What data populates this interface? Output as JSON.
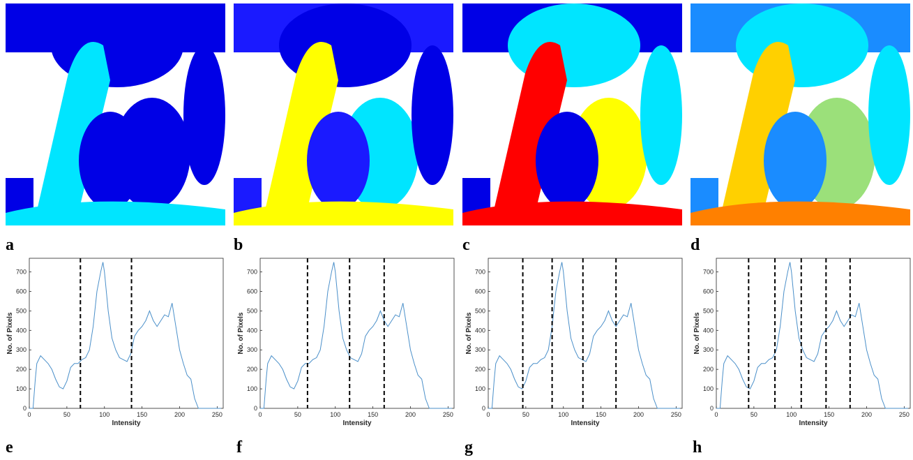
{
  "image_panels": [
    {
      "label": "a"
    },
    {
      "label": "b"
    },
    {
      "label": "c"
    },
    {
      "label": "d"
    }
  ],
  "chart_data": [
    {
      "type": "line",
      "panel_label": "e",
      "xlabel": "Intensity",
      "ylabel": "No. of Pixels",
      "color": "#4a8fc9",
      "threshold_color": "#000000",
      "x": [
        0,
        5,
        8,
        10,
        15,
        20,
        25,
        30,
        35,
        40,
        45,
        50,
        55,
        60,
        65,
        70,
        75,
        80,
        85,
        90,
        95,
        98,
        100,
        105,
        110,
        115,
        120,
        125,
        130,
        135,
        140,
        145,
        150,
        155,
        160,
        165,
        170,
        175,
        180,
        185,
        190,
        195,
        200,
        205,
        210,
        215,
        220,
        225,
        230,
        240,
        250,
        255
      ],
      "values": [
        0,
        0,
        150,
        230,
        270,
        250,
        230,
        200,
        150,
        110,
        100,
        140,
        210,
        230,
        230,
        250,
        260,
        300,
        420,
        600,
        700,
        750,
        700,
        500,
        360,
        300,
        260,
        250,
        240,
        280,
        370,
        400,
        420,
        450,
        500,
        450,
        420,
        450,
        480,
        470,
        540,
        420,
        300,
        230,
        170,
        150,
        50,
        0,
        0,
        0,
        0,
        0
      ],
      "thresholds": [
        68,
        136
      ],
      "xlim": [
        0,
        258
      ],
      "ylim": [
        0,
        770
      ],
      "xticks": [
        0,
        50,
        100,
        150,
        200,
        250
      ],
      "yticks": [
        0,
        100,
        200,
        300,
        400,
        500,
        600,
        700
      ]
    },
    {
      "type": "line",
      "panel_label": "f",
      "xlabel": "Intensity",
      "ylabel": "No. of Pixels",
      "color": "#4a8fc9",
      "threshold_color": "#000000",
      "x": [
        0,
        5,
        8,
        10,
        15,
        20,
        25,
        30,
        35,
        40,
        45,
        50,
        55,
        60,
        65,
        70,
        75,
        80,
        85,
        90,
        95,
        98,
        100,
        105,
        110,
        115,
        120,
        125,
        130,
        135,
        140,
        145,
        150,
        155,
        160,
        165,
        170,
        175,
        180,
        185,
        190,
        195,
        200,
        205,
        210,
        215,
        220,
        225,
        230,
        240,
        250,
        255
      ],
      "values": [
        0,
        0,
        150,
        230,
        270,
        250,
        230,
        200,
        150,
        110,
        100,
        140,
        210,
        230,
        230,
        250,
        260,
        300,
        420,
        600,
        700,
        750,
        700,
        500,
        360,
        300,
        260,
        250,
        240,
        280,
        370,
        400,
        420,
        450,
        500,
        450,
        420,
        450,
        480,
        470,
        540,
        420,
        300,
        230,
        170,
        150,
        50,
        0,
        0,
        0,
        0,
        0
      ],
      "thresholds": [
        63,
        119,
        165
      ],
      "xlim": [
        0,
        258
      ],
      "ylim": [
        0,
        770
      ],
      "xticks": [
        0,
        50,
        100,
        150,
        200,
        250
      ],
      "yticks": [
        0,
        100,
        200,
        300,
        400,
        500,
        600,
        700
      ]
    },
    {
      "type": "line",
      "panel_label": "g",
      "xlabel": "Intensity",
      "ylabel": "No. of Pixels",
      "color": "#4a8fc9",
      "threshold_color": "#000000",
      "x": [
        0,
        5,
        8,
        10,
        15,
        20,
        25,
        30,
        35,
        40,
        45,
        50,
        55,
        60,
        65,
        70,
        75,
        80,
        85,
        90,
        95,
        98,
        100,
        105,
        110,
        115,
        120,
        125,
        130,
        135,
        140,
        145,
        150,
        155,
        160,
        165,
        170,
        175,
        180,
        185,
        190,
        195,
        200,
        205,
        210,
        215,
        220,
        225,
        230,
        240,
        250,
        255
      ],
      "values": [
        0,
        0,
        150,
        230,
        270,
        250,
        230,
        200,
        150,
        110,
        100,
        140,
        210,
        230,
        230,
        250,
        260,
        300,
        420,
        600,
        700,
        750,
        700,
        500,
        360,
        300,
        260,
        250,
        240,
        280,
        370,
        400,
        420,
        450,
        500,
        450,
        420,
        450,
        480,
        470,
        540,
        420,
        300,
        230,
        170,
        150,
        50,
        0,
        0,
        0,
        0,
        0
      ],
      "thresholds": [
        46,
        85,
        126,
        170
      ],
      "xlim": [
        0,
        258
      ],
      "ylim": [
        0,
        770
      ],
      "xticks": [
        0,
        50,
        100,
        150,
        200,
        250
      ],
      "yticks": [
        0,
        100,
        200,
        300,
        400,
        500,
        600,
        700
      ]
    },
    {
      "type": "line",
      "panel_label": "h",
      "xlabel": "Intensity",
      "ylabel": "No. of Pixels",
      "color": "#4a8fc9",
      "threshold_color": "#000000",
      "x": [
        0,
        5,
        8,
        10,
        15,
        20,
        25,
        30,
        35,
        40,
        45,
        50,
        55,
        60,
        65,
        70,
        75,
        80,
        85,
        90,
        95,
        98,
        100,
        105,
        110,
        115,
        120,
        125,
        130,
        135,
        140,
        145,
        150,
        155,
        160,
        165,
        170,
        175,
        180,
        185,
        190,
        195,
        200,
        205,
        210,
        215,
        220,
        225,
        230,
        240,
        250,
        255
      ],
      "values": [
        0,
        0,
        150,
        230,
        270,
        250,
        230,
        200,
        150,
        110,
        100,
        140,
        210,
        230,
        230,
        250,
        260,
        300,
        420,
        600,
        700,
        750,
        700,
        500,
        360,
        300,
        260,
        250,
        240,
        280,
        370,
        400,
        420,
        450,
        500,
        450,
        420,
        450,
        480,
        470,
        540,
        420,
        300,
        230,
        170,
        150,
        50,
        0,
        0,
        0,
        0,
        0
      ],
      "thresholds": [
        43,
        78,
        113,
        146,
        178
      ],
      "xlim": [
        0,
        258
      ],
      "ylim": [
        0,
        770
      ],
      "xticks": [
        0,
        50,
        100,
        150,
        200,
        250
      ],
      "yticks": [
        0,
        100,
        200,
        300,
        400,
        500,
        600,
        700
      ]
    }
  ]
}
